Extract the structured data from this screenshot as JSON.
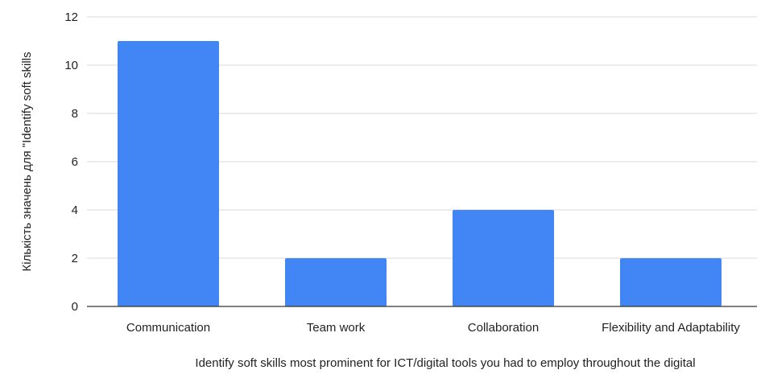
{
  "chart_data": {
    "type": "bar",
    "categories": [
      "Communication",
      "Team work",
      "Collaboration",
      "Flexibility and Adaptability"
    ],
    "values": [
      11,
      2,
      4,
      2
    ],
    "xlabel": "Identify soft skills most prominent for ICT/digital tools you had to employ throughout the digital",
    "ylabel": "Кількість значень для \"Identify soft skills",
    "ylim": [
      0,
      12
    ],
    "yticks": [
      0,
      2,
      4,
      6,
      8,
      10,
      12
    ],
    "grid": true,
    "bar_color": "#4285F4",
    "grid_color": "#d9d9d9",
    "axis_color": "#333333"
  }
}
